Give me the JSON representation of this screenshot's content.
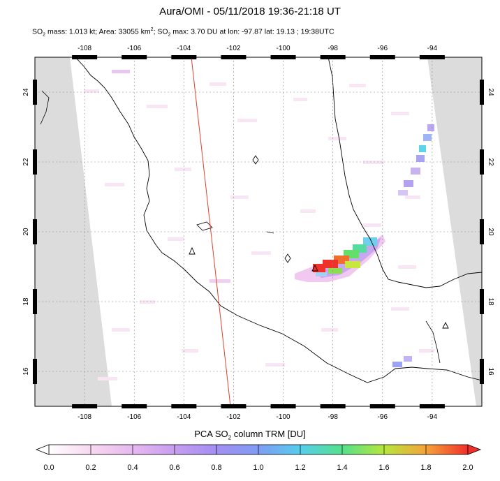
{
  "title": "Aura/OMI - 05/11/2018 19:36-21:18 UT",
  "subtitle": {
    "p1": "SO",
    "s1": "2",
    "p2": " mass: 1.013 kt; Area: 33055 km",
    "s2": "2",
    "p3": "; SO",
    "s3": "2",
    "p4": " max: 3.70 DU at lon: -97.87 lat: 19.13 ; 19:38UTC"
  },
  "map": {
    "lon_range": [
      -110,
      -92
    ],
    "lat_range": [
      15,
      25
    ],
    "lon_ticks": [
      -108,
      -106,
      -104,
      -102,
      -100,
      -98,
      -96,
      -94
    ],
    "lat_ticks": [
      16,
      18,
      20,
      22,
      24
    ],
    "lon_tick_labels": [
      "-108",
      "-106",
      "-104",
      "-102",
      "-100",
      "-98",
      "-96",
      "-94"
    ],
    "lat_tick_labels": [
      "16",
      "18",
      "20",
      "22",
      "24"
    ],
    "no_data_color": "#dcdcdc",
    "track_line_color": "#e0402a"
  },
  "colorbar": {
    "title_p1": "PCA SO",
    "title_s1": "2",
    "title_p2": " column TRM [DU]",
    "ticks": [
      "0.0",
      "0.2",
      "0.4",
      "0.6",
      "0.8",
      "1.0",
      "1.2",
      "1.4",
      "1.6",
      "1.8",
      "2.0"
    ],
    "range": [
      0.0,
      2.0
    ],
    "colors": [
      "#ffffff",
      "#f7d8f0",
      "#d9a8ef",
      "#a98cf0",
      "#7c8cf2",
      "#55b8f0",
      "#4ee0c8",
      "#59e05c",
      "#d6e83a",
      "#f8a83a",
      "#f0302a"
    ]
  }
}
